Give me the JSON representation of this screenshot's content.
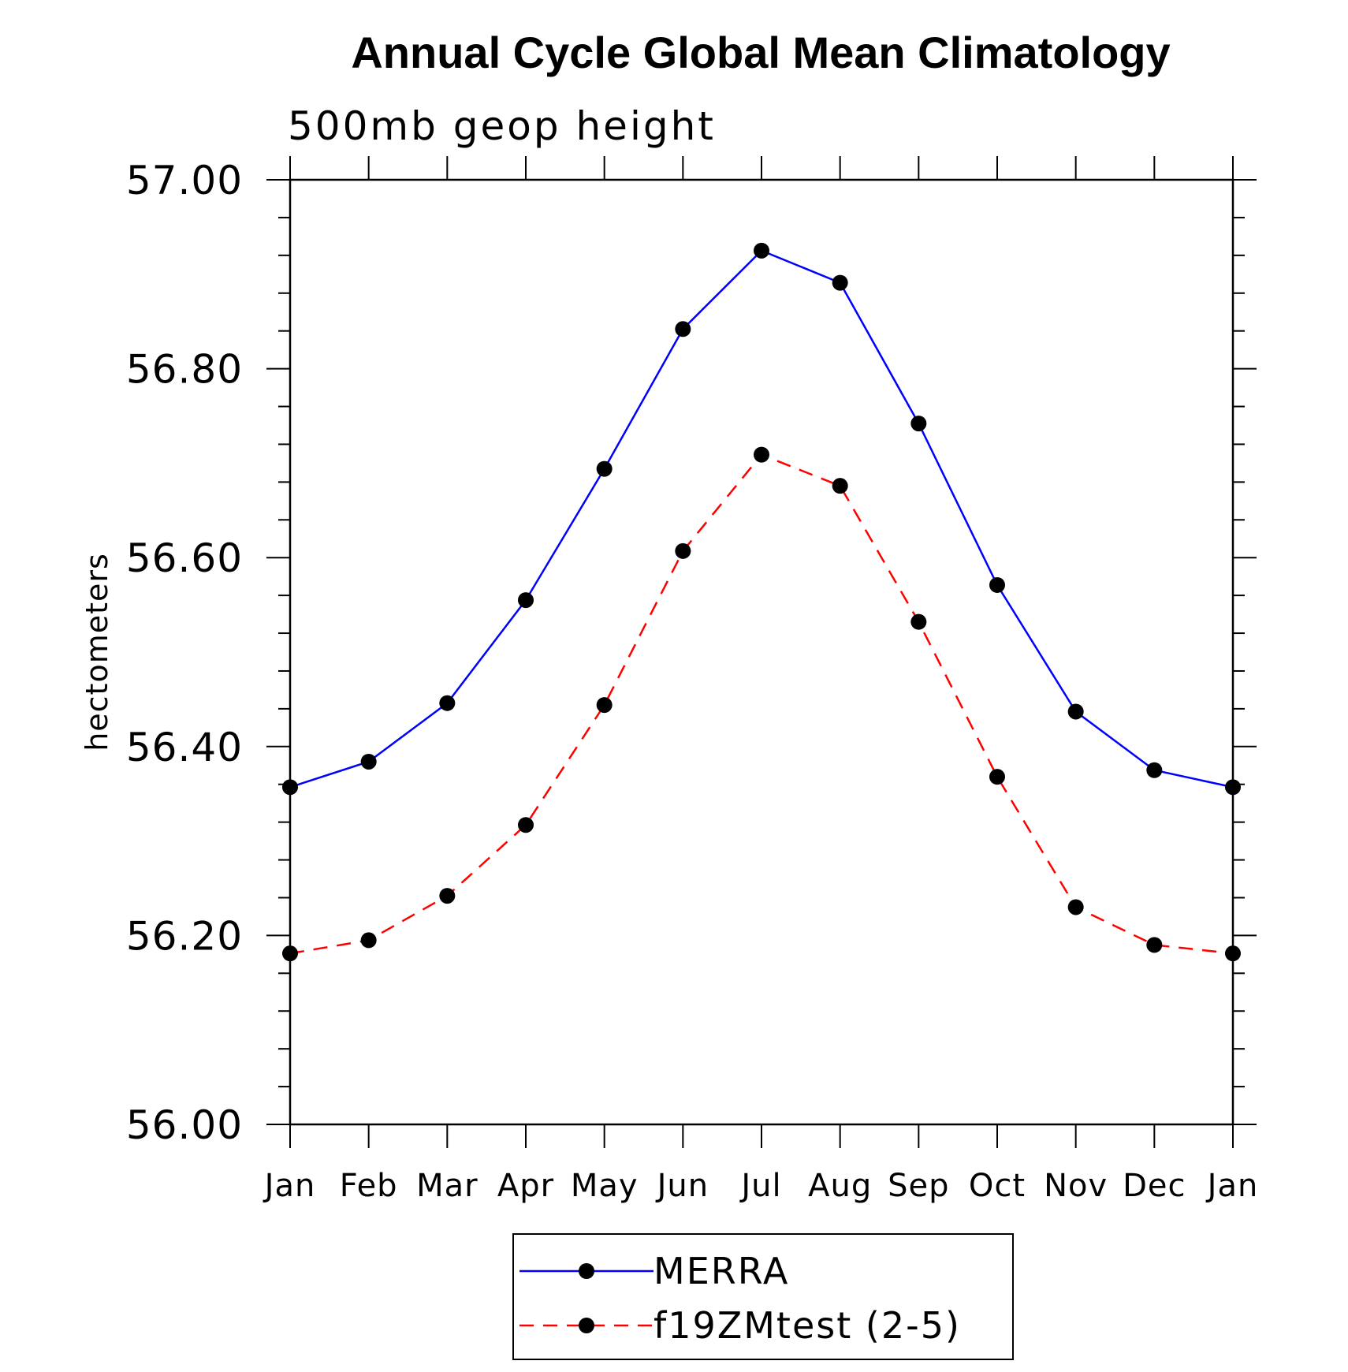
{
  "chart_data": {
    "type": "line",
    "title": "Annual Cycle Global Mean Climatology",
    "subtitle": "500mb geop height",
    "xlabel": "",
    "ylabel": "hectometers",
    "categories": [
      "Jan",
      "Feb",
      "Mar",
      "Apr",
      "May",
      "Jun",
      "Jul",
      "Aug",
      "Sep",
      "Oct",
      "Nov",
      "Dec",
      "Jan"
    ],
    "ylim": [
      56.0,
      57.0
    ],
    "yticks": [
      56.0,
      56.2,
      56.4,
      56.6,
      56.8,
      57.0
    ],
    "ytick_labels": [
      "56.00",
      "56.20",
      "56.40",
      "56.60",
      "56.80",
      "57.00"
    ],
    "grid": false,
    "legend_position": "bottom-center",
    "series": [
      {
        "name": "MERRA",
        "color": "#0000ff",
        "line_style": "solid",
        "marker": "filled-circle",
        "values": [
          56.357,
          56.384,
          56.446,
          56.555,
          56.694,
          56.842,
          56.925,
          56.891,
          56.742,
          56.571,
          56.437,
          56.375,
          56.357
        ]
      },
      {
        "name": "f19ZMtest (2-5)",
        "color": "#ff0000",
        "line_style": "dashed",
        "marker": "filled-circle",
        "values": [
          56.181,
          56.195,
          56.242,
          56.317,
          56.444,
          56.607,
          56.709,
          56.676,
          56.532,
          56.368,
          56.23,
          56.19,
          56.181
        ]
      }
    ]
  }
}
